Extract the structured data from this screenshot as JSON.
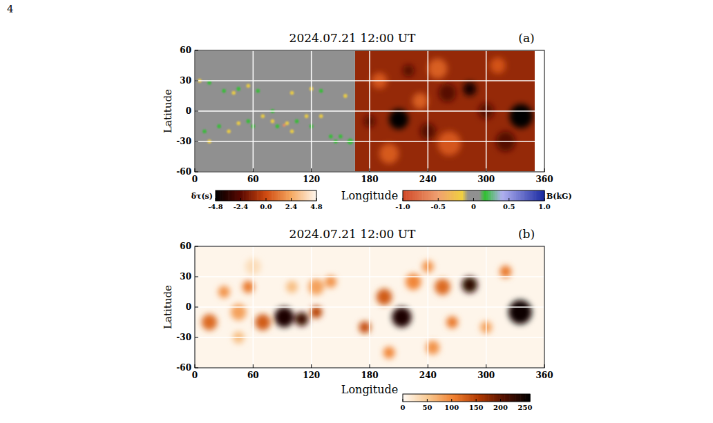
{
  "page_number": "4",
  "chart_data": [
    {
      "type": "map",
      "title": "2024.07.21 12:00 UT",
      "panel": "(a)",
      "x_label": "Longitude",
      "y_label": "Latitude",
      "xlim": [
        0,
        360
      ],
      "ylim": [
        -60,
        60
      ],
      "xticks": [
        0,
        60,
        120,
        180,
        240,
        300,
        360
      ],
      "yticks": [
        -60,
        -30,
        0,
        30,
        60
      ],
      "grid": true,
      "layers": [
        {
          "lon_range": [
            165,
            350
          ],
          "background": -1.2,
          "colorbar": {
            "label": "δτ(s)",
            "range": [
              -4.8,
              4.8
            ],
            "ticks": [
              -4.8,
              -2.4,
              {
                "value": 0,
                "label": "0.0"
              },
              2.4,
              4.8
            ]
          },
          "features": [
            {
              "lon": 210,
              "lat": -8,
              "size": 10,
              "value": -4.8
            },
            {
              "lon": 283,
              "lat": 22,
              "size": 7,
              "value": -4.3
            },
            {
              "lon": 336,
              "lat": -5,
              "size": 12,
              "value": -4.8
            },
            {
              "lon": 190,
              "lat": 30,
              "size": 8,
              "value": 0.3
            },
            {
              "lon": 250,
              "lat": 42,
              "size": 10,
              "value": 0.5
            },
            {
              "lon": 312,
              "lat": 45,
              "size": 8,
              "value": 0.2
            },
            {
              "lon": 232,
              "lat": 10,
              "size": 8,
              "value": 0.5
            },
            {
              "lon": 262,
              "lat": -32,
              "size": 12,
              "value": 0.3
            },
            {
              "lon": 200,
              "lat": -42,
              "size": 10,
              "value": 0.4
            },
            {
              "lon": 260,
              "lat": 18,
              "size": 9,
              "value": -2.5
            },
            {
              "lon": 240,
              "lat": -20,
              "size": 8,
              "value": -2.5
            },
            {
              "lon": 300,
              "lat": 0,
              "size": 8,
              "value": -2.4
            },
            {
              "lon": 180,
              "lat": -10,
              "size": 6,
              "value": -2.4
            },
            {
              "lon": 320,
              "lat": -30,
              "size": 10,
              "value": -2.6
            },
            {
              "lon": 220,
              "lat": 40,
              "size": 6,
              "value": -2.5
            }
          ]
        },
        {
          "lon_range": [
            0,
            165
          ],
          "background": 0,
          "colorbar": {
            "label": "B(kG)",
            "range": [
              -1,
              1
            ],
            "ticks": [
              {
                "value": -1,
                "label": "-1.0"
              },
              -0.5,
              0,
              0.5,
              {
                "value": 1,
                "label": "1.0"
              }
            ]
          },
          "features": [
            {
              "lon": 5,
              "lat": 30,
              "size": 2,
              "value": -0.15
            },
            {
              "lon": 15,
              "lat": 28,
              "size": 2,
              "value": 0.15
            },
            {
              "lon": 30,
              "lat": 20,
              "size": 2,
              "value": 0.15
            },
            {
              "lon": 40,
              "lat": 18,
              "size": 2,
              "value": -0.15
            },
            {
              "lon": 45,
              "lat": 22,
              "size": 2,
              "value": 0.15
            },
            {
              "lon": 55,
              "lat": 25,
              "size": 2,
              "value": -0.15
            },
            {
              "lon": 65,
              "lat": 20,
              "size": 2,
              "value": 0.15
            },
            {
              "lon": 25,
              "lat": -15,
              "size": 2,
              "value": 0.15
            },
            {
              "lon": 35,
              "lat": -20,
              "size": 2,
              "value": -0.15
            },
            {
              "lon": 10,
              "lat": -20,
              "size": 2,
              "value": 0.15
            },
            {
              "lon": 15,
              "lat": -30,
              "size": 2,
              "value": -0.15
            },
            {
              "lon": 45,
              "lat": -12,
              "size": 2,
              "value": -0.15
            },
            {
              "lon": 55,
              "lat": -10,
              "size": 2,
              "value": 0.15
            },
            {
              "lon": 60,
              "lat": -15,
              "size": 2,
              "value": 0.15
            },
            {
              "lon": 70,
              "lat": -5,
              "size": 2,
              "value": -0.15
            },
            {
              "lon": 80,
              "lat": -10,
              "size": 2,
              "value": -0.15
            },
            {
              "lon": 85,
              "lat": -15,
              "size": 2,
              "value": 0.15
            },
            {
              "lon": 95,
              "lat": -12,
              "size": 2,
              "value": -0.15
            },
            {
              "lon": 105,
              "lat": -10,
              "size": 2,
              "value": 0.15
            },
            {
              "lon": 100,
              "lat": -20,
              "size": 2,
              "value": -0.15
            },
            {
              "lon": 115,
              "lat": -5,
              "size": 2,
              "value": -0.15
            },
            {
              "lon": 120,
              "lat": -15,
              "size": 2,
              "value": 0.15
            },
            {
              "lon": 130,
              "lat": -5,
              "size": 2,
              "value": -0.15
            },
            {
              "lon": 140,
              "lat": -25,
              "size": 2,
              "value": 0.15
            },
            {
              "lon": 150,
              "lat": -25,
              "size": 2,
              "value": 0.15
            },
            {
              "lon": 145,
              "lat": -30,
              "size": 2,
              "value": 0.15
            },
            {
              "lon": 120,
              "lat": 22,
              "size": 2,
              "value": -0.15
            },
            {
              "lon": 130,
              "lat": 20,
              "size": 2,
              "value": 0.15
            },
            {
              "lon": 100,
              "lat": 18,
              "size": 2,
              "value": -0.15
            },
            {
              "lon": 155,
              "lat": 15,
              "size": 2,
              "value": -0.15
            },
            {
              "lon": 160,
              "lat": -30,
              "size": 3,
              "value": 0.15
            },
            {
              "lon": 80,
              "lat": 0,
              "size": 2,
              "value": 0.15
            },
            {
              "lon": 92,
              "lat": -14,
              "size": 1.5,
              "value": -0.6
            }
          ]
        }
      ]
    },
    {
      "type": "map",
      "title": "2024.07.21 12:00 UT",
      "panel": "(b)",
      "x_label": "Longitude",
      "y_label": "Latitude",
      "xlim": [
        0,
        360
      ],
      "ylim": [
        -60,
        60
      ],
      "xticks": [
        0,
        60,
        120,
        180,
        240,
        300,
        360
      ],
      "yticks": [
        -60,
        -30,
        0,
        30,
        60
      ],
      "grid": true,
      "layers": [
        {
          "lon_range": [
            0,
            360
          ],
          "background": 5,
          "colorbar": {
            "range": [
              0,
              260
            ],
            "ticks": [
              0,
              50,
              100,
              150,
              200,
              250
            ]
          },
          "features": [
            {
              "lon": 15,
              "lat": -15,
              "size": 8,
              "value": 120
            },
            {
              "lon": 30,
              "lat": 15,
              "size": 6,
              "value": 90
            },
            {
              "lon": 45,
              "lat": -5,
              "size": 8,
              "value": 80
            },
            {
              "lon": 55,
              "lat": 20,
              "size": 6,
              "value": 110
            },
            {
              "lon": 70,
              "lat": -15,
              "size": 8,
              "value": 130
            },
            {
              "lon": 92,
              "lat": -10,
              "size": 10,
              "value": 240
            },
            {
              "lon": 110,
              "lat": -12,
              "size": 7,
              "value": 220
            },
            {
              "lon": 125,
              "lat": -5,
              "size": 6,
              "value": 150
            },
            {
              "lon": 125,
              "lat": 20,
              "size": 8,
              "value": 80
            },
            {
              "lon": 100,
              "lat": 20,
              "size": 6,
              "value": 60
            },
            {
              "lon": 60,
              "lat": 40,
              "size": 8,
              "value": 30
            },
            {
              "lon": 140,
              "lat": 25,
              "size": 6,
              "value": 90
            },
            {
              "lon": 45,
              "lat": -30,
              "size": 6,
              "value": 60
            },
            {
              "lon": 213,
              "lat": -10,
              "size": 10,
              "value": 240
            },
            {
              "lon": 283,
              "lat": 22,
              "size": 8,
              "value": 230
            },
            {
              "lon": 335,
              "lat": -5,
              "size": 12,
              "value": 250
            },
            {
              "lon": 195,
              "lat": 10,
              "size": 8,
              "value": 130
            },
            {
              "lon": 225,
              "lat": 25,
              "size": 8,
              "value": 100
            },
            {
              "lon": 255,
              "lat": 20,
              "size": 8,
              "value": 120
            },
            {
              "lon": 265,
              "lat": -15,
              "size": 6,
              "value": 110
            },
            {
              "lon": 245,
              "lat": -40,
              "size": 7,
              "value": 90
            },
            {
              "lon": 200,
              "lat": -45,
              "size": 6,
              "value": 100
            },
            {
              "lon": 320,
              "lat": 35,
              "size": 6,
              "value": 110
            },
            {
              "lon": 300,
              "lat": -20,
              "size": 6,
              "value": 80
            },
            {
              "lon": 175,
              "lat": -20,
              "size": 6,
              "value": 140
            },
            {
              "lon": 240,
              "lat": 40,
              "size": 6,
              "value": 90
            }
          ]
        }
      ]
    }
  ]
}
